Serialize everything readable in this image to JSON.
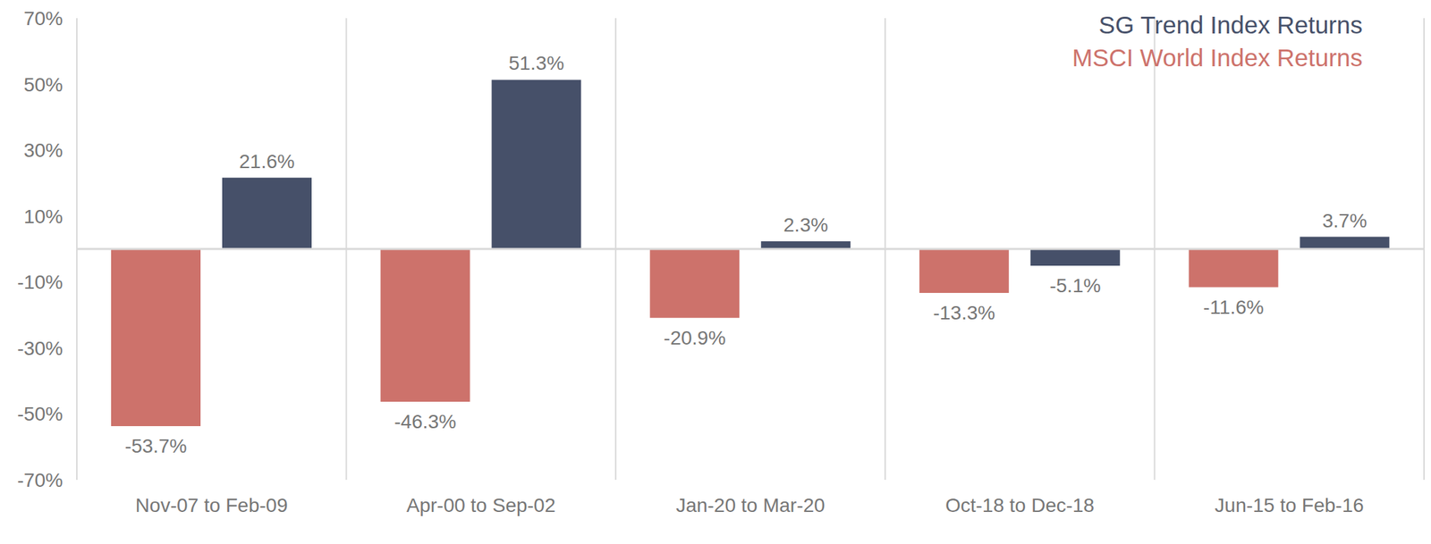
{
  "chart_data": {
    "type": "bar",
    "categories": [
      "Nov-07 to Feb-09",
      "Apr-00 to Sep-02",
      "Jan-20 to Mar-20",
      "Oct-18 to Dec-18",
      "Jun-15 to Feb-16"
    ],
    "series": [
      {
        "name": "MSCI World Index Returns",
        "color": "#CD726B",
        "values": [
          -53.7,
          -46.3,
          -20.9,
          -13.3,
          -11.6
        ],
        "value_labels": [
          "-53.7%",
          "-46.3%",
          "-20.9%",
          "-13.3%",
          "-11.6%"
        ]
      },
      {
        "name": "SG Trend Index Returns",
        "color": "#465069",
        "values": [
          21.6,
          51.3,
          2.3,
          -5.1,
          3.7
        ],
        "value_labels": [
          "21.6%",
          "51.3%",
          "2.3%",
          "-5.1%",
          "3.7%"
        ]
      }
    ],
    "ylim": [
      -70,
      70
    ],
    "yticks": [
      {
        "value": -70,
        "label": "-70%"
      },
      {
        "value": -50,
        "label": "-50%"
      },
      {
        "value": -30,
        "label": "-30%"
      },
      {
        "value": -10,
        "label": "-10%"
      },
      {
        "value": 10,
        "label": "10%"
      },
      {
        "value": 30,
        "label": "30%"
      },
      {
        "value": 50,
        "label": "50%"
      },
      {
        "value": 70,
        "label": "70%"
      }
    ],
    "grid": true,
    "legend": "top-right",
    "data_labels": true
  }
}
